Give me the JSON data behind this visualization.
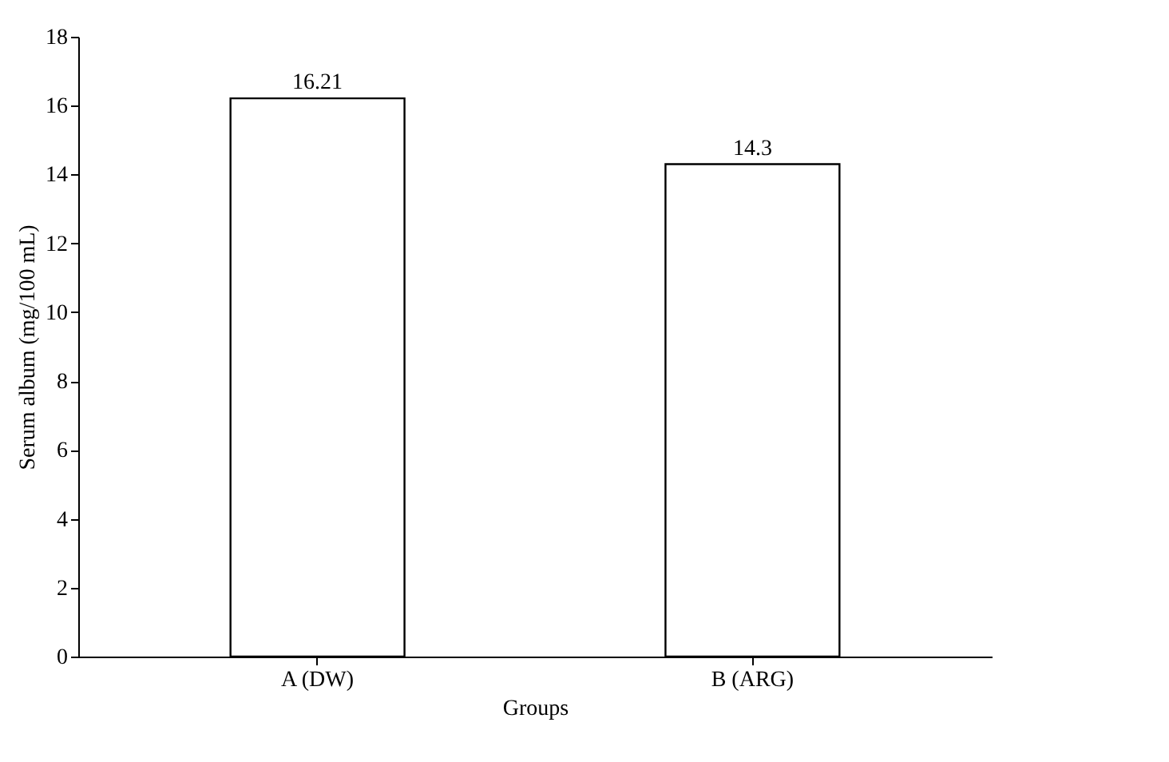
{
  "chart_data": {
    "type": "bar",
    "categories": [
      "A (DW)",
      "B (ARG)"
    ],
    "values": [
      16.21,
      14.3
    ],
    "color": "#ffffff",
    "xlabel": "Groups",
    "ylabel": "Serum album (mg/100 mL)",
    "ylim": [
      0,
      18
    ],
    "yticks": [
      0,
      2,
      4,
      6,
      8,
      10,
      12,
      14,
      16,
      18
    ],
    "grid": false,
    "data_labels": true
  }
}
